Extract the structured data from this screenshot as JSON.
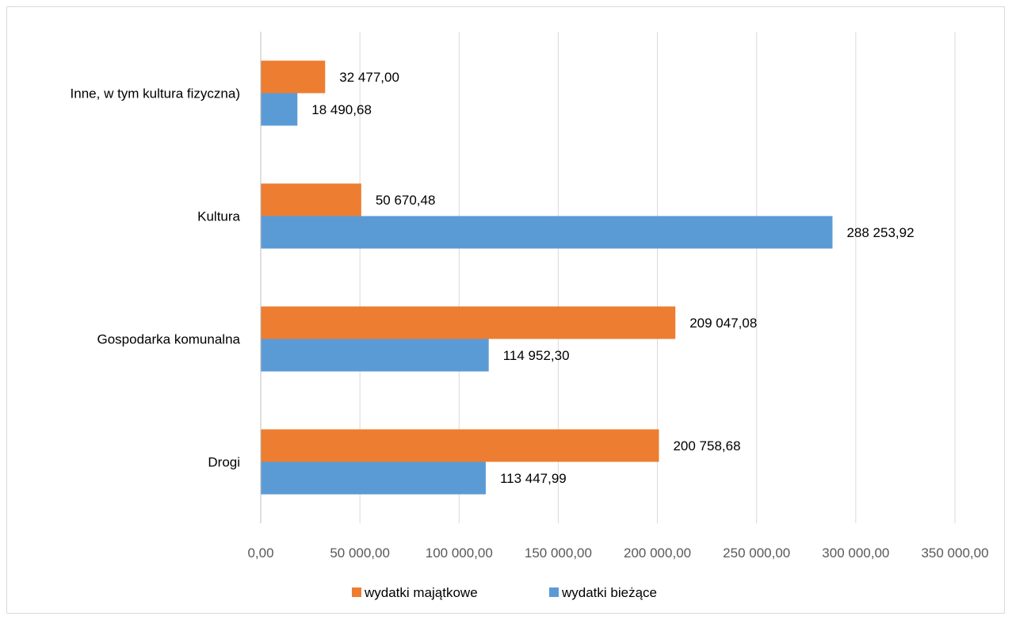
{
  "chart_data": {
    "type": "bar",
    "orientation": "horizontal",
    "categories": [
      "Drogi",
      "Gospodarka komunalna",
      "Kultura",
      "Inne, w tym kultura fizyczna)"
    ],
    "series": [
      {
        "name": "wydatki majątkowe",
        "color": "#ED7D31",
        "values": [
          200758.68,
          209047.08,
          50670.48,
          32477.0
        ],
        "labels": [
          "200 758,68",
          "209 047,08",
          "50 670,48",
          "32 477,00"
        ]
      },
      {
        "name": "wydatki bieżące",
        "color": "#5B9BD5",
        "values": [
          113447.99,
          114952.3,
          288253.92,
          18490.68
        ],
        "labels": [
          "113 447,99",
          "114 952,30",
          "288 253,92",
          "18 490,68"
        ]
      }
    ],
    "xlim": [
      0,
      350000
    ],
    "xticks": [
      0,
      50000,
      100000,
      150000,
      200000,
      250000,
      300000,
      350000
    ],
    "xtick_labels": [
      "0,00",
      "50 000,00",
      "100 000,00",
      "150 000,00",
      "200 000,00",
      "250 000,00",
      "300 000,00",
      "350 000,00"
    ],
    "title": "",
    "xlabel": "",
    "ylabel": "",
    "grid": "vertical",
    "legend_position": "bottom",
    "colors": {
      "gridline": "#d9d9d9",
      "axis": "#bfbfbf",
      "tick_text": "#595959"
    }
  }
}
